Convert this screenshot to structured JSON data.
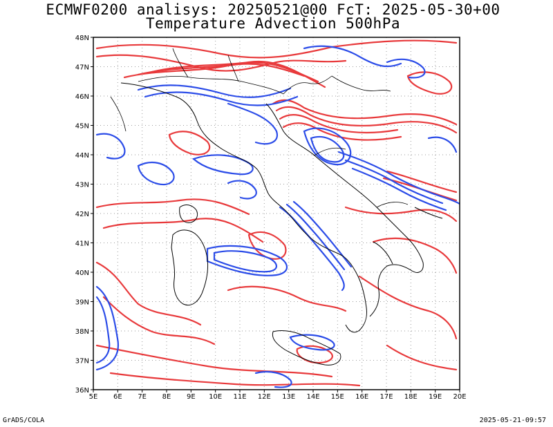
{
  "header": {
    "title_line1": "ECMWF0200 analisys: 20250521@00 FcT: 2025-05-30+00",
    "title_line2": "Temperature Advection 500hPa"
  },
  "map": {
    "lat_labels": [
      "48N",
      "47N",
      "46N",
      "45N",
      "44N",
      "43N",
      "42N",
      "41N",
      "40N",
      "39N",
      "38N",
      "37N",
      "36N"
    ],
    "lon_labels": [
      "5E",
      "6E",
      "7E",
      "8E",
      "9E",
      "10E",
      "11E",
      "12E",
      "13E",
      "14E",
      "15E",
      "16E",
      "17E",
      "18E",
      "19E",
      "20E"
    ],
    "contour_colors": {
      "positive": "#e8393b",
      "negative": "#2b4ce8",
      "coast": "#000000",
      "grid": "#9a9a9a"
    }
  },
  "footer": {
    "left": "GrADS/COLA",
    "right": "2025-05-21-09:57"
  }
}
